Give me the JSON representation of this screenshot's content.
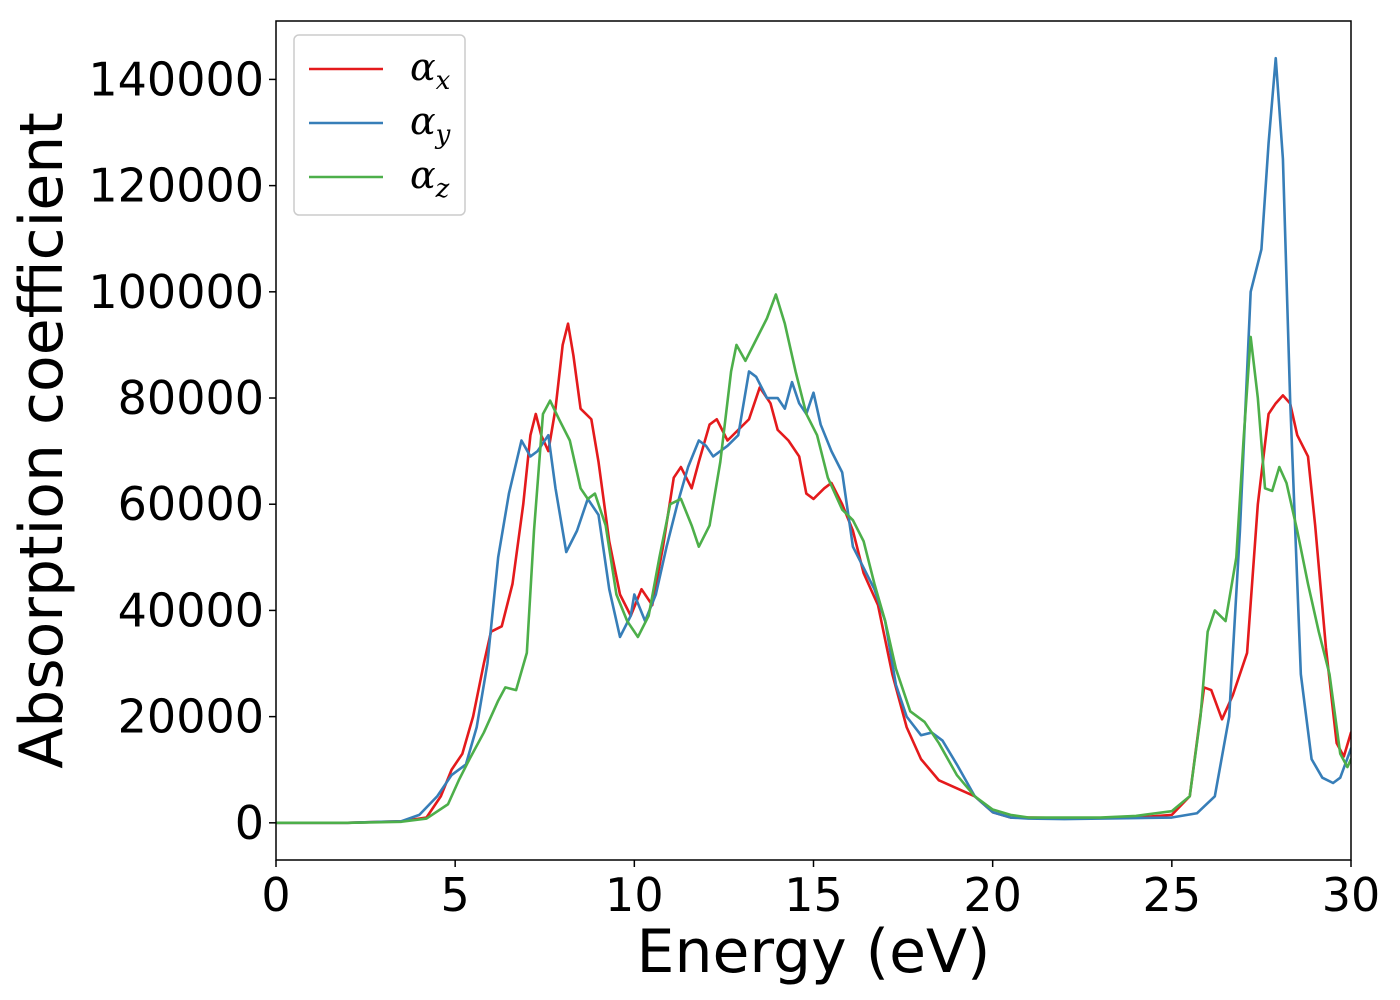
{
  "chart_data": {
    "type": "line",
    "title": "",
    "xlabel": "Energy (eV)",
    "ylabel": "Absorption coefficient",
    "xlim": [
      0,
      30
    ],
    "ylim": [
      -7000,
      151000
    ],
    "xticks": [
      0,
      5,
      10,
      15,
      20,
      25,
      30
    ],
    "yticks": [
      0,
      20000,
      40000,
      60000,
      80000,
      100000,
      120000,
      140000
    ],
    "grid": false,
    "legend": {
      "position": "top-left"
    },
    "series": [
      {
        "name": "αx",
        "symbol": "α",
        "subscript": "x",
        "color": "#e41a1c",
        "points": [
          [
            0,
            0
          ],
          [
            2,
            0
          ],
          [
            3.5,
            300
          ],
          [
            4.2,
            1000
          ],
          [
            4.6,
            5000
          ],
          [
            4.9,
            10000
          ],
          [
            5.2,
            13000
          ],
          [
            5.5,
            20000
          ],
          [
            5.8,
            30000
          ],
          [
            6.0,
            36000
          ],
          [
            6.3,
            37000
          ],
          [
            6.6,
            45000
          ],
          [
            6.9,
            60000
          ],
          [
            7.1,
            73000
          ],
          [
            7.25,
            77000
          ],
          [
            7.4,
            73000
          ],
          [
            7.6,
            70000
          ],
          [
            7.8,
            78000
          ],
          [
            8.0,
            90000
          ],
          [
            8.15,
            94000
          ],
          [
            8.3,
            88000
          ],
          [
            8.5,
            78000
          ],
          [
            8.8,
            76000
          ],
          [
            9.0,
            68000
          ],
          [
            9.3,
            53000
          ],
          [
            9.6,
            43000
          ],
          [
            9.9,
            39000
          ],
          [
            10.2,
            44000
          ],
          [
            10.5,
            41000
          ],
          [
            10.8,
            52000
          ],
          [
            11.1,
            65000
          ],
          [
            11.3,
            67000
          ],
          [
            11.6,
            63000
          ],
          [
            11.8,
            68000
          ],
          [
            12.1,
            75000
          ],
          [
            12.3,
            76000
          ],
          [
            12.6,
            72000
          ],
          [
            12.9,
            74000
          ],
          [
            13.2,
            76000
          ],
          [
            13.5,
            82000
          ],
          [
            13.8,
            79000
          ],
          [
            14.0,
            74000
          ],
          [
            14.3,
            72000
          ],
          [
            14.6,
            69000
          ],
          [
            14.8,
            62000
          ],
          [
            15.0,
            61000
          ],
          [
            15.3,
            63000
          ],
          [
            15.5,
            64000
          ],
          [
            15.8,
            60000
          ],
          [
            16.1,
            55000
          ],
          [
            16.4,
            47000
          ],
          [
            16.8,
            41000
          ],
          [
            17.2,
            28000
          ],
          [
            17.6,
            18000
          ],
          [
            18.0,
            12000
          ],
          [
            18.5,
            8000
          ],
          [
            19.0,
            6500
          ],
          [
            19.5,
            5000
          ],
          [
            20.0,
            2000
          ],
          [
            20.5,
            1000
          ],
          [
            21.0,
            1000
          ],
          [
            22.0,
            900
          ],
          [
            23.0,
            900
          ],
          [
            24.0,
            1000
          ],
          [
            25.0,
            1500
          ],
          [
            25.5,
            5000
          ],
          [
            25.9,
            25500
          ],
          [
            26.1,
            25000
          ],
          [
            26.4,
            19500
          ],
          [
            26.7,
            24000
          ],
          [
            27.1,
            32000
          ],
          [
            27.4,
            60000
          ],
          [
            27.7,
            77000
          ],
          [
            27.9,
            79000
          ],
          [
            28.1,
            80500
          ],
          [
            28.3,
            79000
          ],
          [
            28.5,
            73000
          ],
          [
            28.8,
            69000
          ],
          [
            29.0,
            56000
          ],
          [
            29.3,
            33000
          ],
          [
            29.6,
            15000
          ],
          [
            29.8,
            12500
          ],
          [
            30.0,
            17000
          ]
        ]
      },
      {
        "name": "αy",
        "symbol": "α",
        "subscript": "y",
        "color": "#377eb8",
        "points": [
          [
            0,
            0
          ],
          [
            2,
            0
          ],
          [
            3.5,
            300
          ],
          [
            4.0,
            1500
          ],
          [
            4.5,
            5000
          ],
          [
            4.9,
            9000
          ],
          [
            5.3,
            11000
          ],
          [
            5.6,
            18000
          ],
          [
            5.9,
            30000
          ],
          [
            6.2,
            50000
          ],
          [
            6.5,
            62000
          ],
          [
            6.85,
            72000
          ],
          [
            7.1,
            69000
          ],
          [
            7.3,
            70000
          ],
          [
            7.6,
            73000
          ],
          [
            7.8,
            63000
          ],
          [
            8.1,
            51000
          ],
          [
            8.4,
            55000
          ],
          [
            8.7,
            61000
          ],
          [
            9.0,
            58000
          ],
          [
            9.3,
            44000
          ],
          [
            9.6,
            35000
          ],
          [
            9.9,
            39000
          ],
          [
            10.0,
            43000
          ],
          [
            10.3,
            38000
          ],
          [
            10.6,
            43000
          ],
          [
            10.9,
            52000
          ],
          [
            11.2,
            60000
          ],
          [
            11.5,
            67000
          ],
          [
            11.8,
            72000
          ],
          [
            12.0,
            71000
          ],
          [
            12.2,
            69000
          ],
          [
            12.6,
            71000
          ],
          [
            12.9,
            73000
          ],
          [
            13.2,
            85000
          ],
          [
            13.4,
            84000
          ],
          [
            13.7,
            80000
          ],
          [
            14.0,
            80000
          ],
          [
            14.2,
            78000
          ],
          [
            14.4,
            83000
          ],
          [
            14.6,
            79000
          ],
          [
            14.8,
            77000
          ],
          [
            15.0,
            81000
          ],
          [
            15.2,
            75000
          ],
          [
            15.5,
            70000
          ],
          [
            15.8,
            66000
          ],
          [
            16.1,
            52000
          ],
          [
            16.4,
            48000
          ],
          [
            16.7,
            44000
          ],
          [
            17.0,
            38000
          ],
          [
            17.3,
            26000
          ],
          [
            17.6,
            20000
          ],
          [
            18.0,
            16500
          ],
          [
            18.3,
            17000
          ],
          [
            18.6,
            15500
          ],
          [
            19.0,
            11000
          ],
          [
            19.5,
            5000
          ],
          [
            20.0,
            2000
          ],
          [
            20.5,
            1000
          ],
          [
            21.0,
            800
          ],
          [
            22.0,
            700
          ],
          [
            23.0,
            800
          ],
          [
            24.0,
            900
          ],
          [
            25.0,
            1000
          ],
          [
            25.7,
            1800
          ],
          [
            26.2,
            5000
          ],
          [
            26.6,
            20000
          ],
          [
            26.9,
            55000
          ],
          [
            27.2,
            100000
          ],
          [
            27.5,
            108000
          ],
          [
            27.7,
            128000
          ],
          [
            27.9,
            144000
          ],
          [
            28.1,
            125000
          ],
          [
            28.3,
            80000
          ],
          [
            28.6,
            28000
          ],
          [
            28.9,
            12000
          ],
          [
            29.2,
            8500
          ],
          [
            29.5,
            7500
          ],
          [
            29.7,
            8500
          ],
          [
            30.0,
            14000
          ]
        ]
      },
      {
        "name": "αz",
        "symbol": "α",
        "subscript": "z",
        "color": "#4daf4a",
        "points": [
          [
            0,
            0
          ],
          [
            2,
            0
          ],
          [
            3.5,
            200
          ],
          [
            4.2,
            800
          ],
          [
            4.8,
            3500
          ],
          [
            5.1,
            8000
          ],
          [
            5.4,
            12000
          ],
          [
            5.8,
            17000
          ],
          [
            6.2,
            23000
          ],
          [
            6.4,
            25500
          ],
          [
            6.7,
            25000
          ],
          [
            7.0,
            32000
          ],
          [
            7.2,
            55000
          ],
          [
            7.45,
            77000
          ],
          [
            7.65,
            79500
          ],
          [
            7.9,
            76000
          ],
          [
            8.2,
            72000
          ],
          [
            8.5,
            63000
          ],
          [
            8.7,
            61000
          ],
          [
            8.9,
            62000
          ],
          [
            9.2,
            56000
          ],
          [
            9.5,
            43000
          ],
          [
            9.8,
            38000
          ],
          [
            10.1,
            35000
          ],
          [
            10.4,
            39000
          ],
          [
            10.7,
            50000
          ],
          [
            11.0,
            60000
          ],
          [
            11.3,
            61000
          ],
          [
            11.6,
            56000
          ],
          [
            11.8,
            52000
          ],
          [
            12.1,
            56000
          ],
          [
            12.4,
            68000
          ],
          [
            12.7,
            85000
          ],
          [
            12.85,
            90000
          ],
          [
            13.1,
            87000
          ],
          [
            13.4,
            91000
          ],
          [
            13.7,
            95000
          ],
          [
            13.95,
            99500
          ],
          [
            14.2,
            94000
          ],
          [
            14.5,
            85000
          ],
          [
            14.8,
            77000
          ],
          [
            15.1,
            73000
          ],
          [
            15.4,
            65000
          ],
          [
            15.8,
            59000
          ],
          [
            16.1,
            57000
          ],
          [
            16.4,
            53000
          ],
          [
            16.7,
            45000
          ],
          [
            17.0,
            38000
          ],
          [
            17.3,
            29000
          ],
          [
            17.7,
            21000
          ],
          [
            18.1,
            19000
          ],
          [
            18.5,
            15000
          ],
          [
            19.0,
            9000
          ],
          [
            19.5,
            5000
          ],
          [
            20.0,
            2500
          ],
          [
            20.5,
            1500
          ],
          [
            21.0,
            1000
          ],
          [
            22.0,
            1000
          ],
          [
            23.0,
            1000
          ],
          [
            24.0,
            1300
          ],
          [
            25.0,
            2200
          ],
          [
            25.5,
            5000
          ],
          [
            25.8,
            20000
          ],
          [
            26.0,
            36000
          ],
          [
            26.2,
            40000
          ],
          [
            26.5,
            38000
          ],
          [
            26.8,
            50000
          ],
          [
            27.0,
            72000
          ],
          [
            27.2,
            91500
          ],
          [
            27.4,
            80000
          ],
          [
            27.6,
            63000
          ],
          [
            27.8,
            62500
          ],
          [
            28.0,
            67000
          ],
          [
            28.2,
            64000
          ],
          [
            28.5,
            55000
          ],
          [
            28.8,
            45000
          ],
          [
            29.1,
            36000
          ],
          [
            29.4,
            28000
          ],
          [
            29.7,
            13000
          ],
          [
            29.9,
            10500
          ],
          [
            30.0,
            12000
          ]
        ]
      }
    ]
  }
}
